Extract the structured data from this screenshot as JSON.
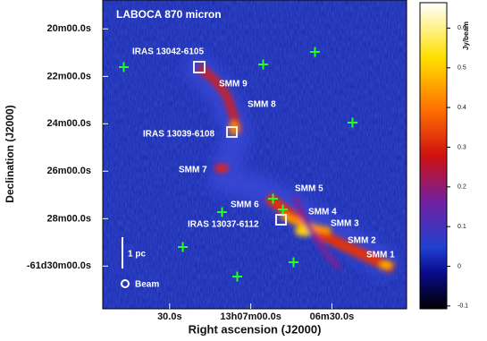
{
  "chart_data": {
    "type": "image",
    "title": "LABOCA 870 micron",
    "x_label": "Right ascension (J2000)",
    "y_label": "Declination (J2000)",
    "xlim": [
      196.978,
      196.51
    ],
    "ylim": [
      -61.313,
      -61.53
    ],
    "xticks": [
      {
        "value": 196.875,
        "label": "30.0s"
      },
      {
        "value": 196.75,
        "label": "13h07m00.0s"
      },
      {
        "value": 196.625,
        "label": "06m30.0s"
      }
    ],
    "yticks": [
      {
        "value": -61.3333,
        "label": "20m00.0s"
      },
      {
        "value": -61.3667,
        "label": "22m00.0s"
      },
      {
        "value": -61.4,
        "label": "24m00.0s"
      },
      {
        "value": -61.4333,
        "label": "26m00.0s"
      },
      {
        "value": -61.4667,
        "label": "28m00.0s"
      },
      {
        "value": -61.5,
        "label": "-61d30m00.0s"
      }
    ],
    "colorbar_label": "Jy/beam",
    "clim": [
      -0.107,
      0.664
    ],
    "colorbar_ticks": [
      -0.1,
      0,
      0.1,
      0.2,
      0.3,
      0.4,
      0.5,
      0.6
    ],
    "annotations": [
      "IRAS 13042-6105",
      "SMM 9",
      "SMM 8",
      "IRAS 13039-6108",
      "SMM 7",
      "SMM 5",
      "SMM 6",
      "SMM 4",
      "IRAS 13037-6112",
      "SMM 3",
      "SMM 2",
      "SMM 1",
      "1 pc",
      "Beam"
    ]
  }
}
